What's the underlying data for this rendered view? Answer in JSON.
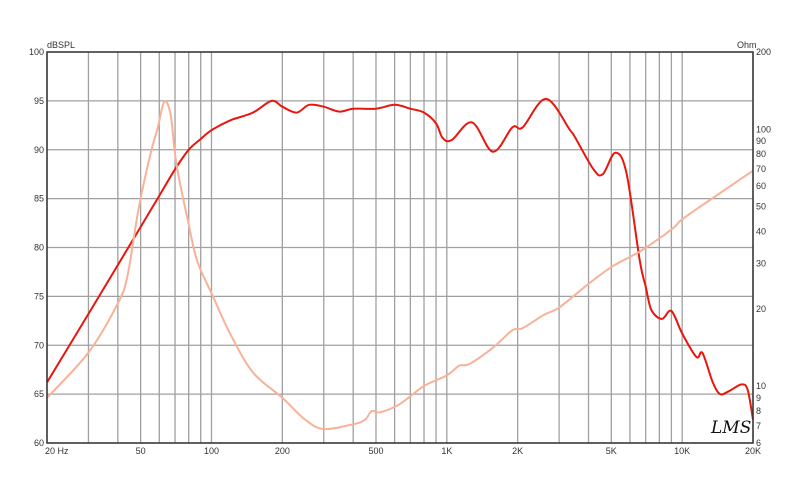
{
  "chart_data": {
    "type": "line",
    "title": "",
    "xlabel": "",
    "ylabel_left": "dBSPL",
    "ylabel_right": "Ohm",
    "x_scale": "log",
    "xlim": [
      20,
      20000
    ],
    "ylim_left": [
      60,
      100
    ],
    "ylim_right": [
      6,
      200
    ],
    "y_right_scale": "log",
    "grid": true,
    "x_tick_labels": [
      {
        "value": 20,
        "label": "20  Hz"
      },
      {
        "value": 50,
        "label": "50"
      },
      {
        "value": 100,
        "label": "100"
      },
      {
        "value": 200,
        "label": "200"
      },
      {
        "value": 500,
        "label": "500"
      },
      {
        "value": 1000,
        "label": "1K"
      },
      {
        "value": 2000,
        "label": "2K"
      },
      {
        "value": 5000,
        "label": "5K"
      },
      {
        "value": 10000,
        "label": "10K"
      },
      {
        "value": 20000,
        "label": "20K"
      }
    ],
    "x_gridlines": [
      20,
      30,
      40,
      50,
      60,
      70,
      80,
      90,
      100,
      200,
      300,
      400,
      500,
      600,
      700,
      800,
      900,
      1000,
      2000,
      3000,
      4000,
      5000,
      6000,
      7000,
      8000,
      9000,
      10000,
      20000
    ],
    "y_left_ticks": [
      60,
      65,
      70,
      75,
      80,
      85,
      90,
      95,
      100
    ],
    "y_right_ticks": [
      200,
      100,
      90,
      80,
      70,
      60,
      50,
      40,
      30,
      20,
      10,
      9,
      8,
      7,
      6
    ],
    "series": [
      {
        "axis": "left",
        "color": "#e8160c",
        "points": [
          [
            20,
            66.2
          ],
          [
            30,
            73.2
          ],
          [
            40,
            78.2
          ],
          [
            50,
            82.1
          ],
          [
            59,
            85
          ],
          [
            70,
            88
          ],
          [
            80,
            90
          ],
          [
            90,
            91.1
          ],
          [
            100,
            92
          ],
          [
            120,
            93
          ],
          [
            150,
            93.8
          ],
          [
            180,
            95
          ],
          [
            200,
            94.4
          ],
          [
            230,
            93.8
          ],
          [
            260,
            94.6
          ],
          [
            300,
            94.4
          ],
          [
            350,
            93.9
          ],
          [
            400,
            94.2
          ],
          [
            500,
            94.2
          ],
          [
            600,
            94.6
          ],
          [
            700,
            94.2
          ],
          [
            800,
            93.8
          ],
          [
            900,
            92.7
          ],
          [
            960,
            91.2
          ],
          [
            1050,
            91.0
          ],
          [
            1280,
            92.8
          ],
          [
            1570,
            89.8
          ],
          [
            1900,
            92.3
          ],
          [
            2100,
            92.3
          ],
          [
            2640,
            95.2
          ],
          [
            3340,
            92
          ],
          [
            3500,
            91.3
          ],
          [
            4200,
            88
          ],
          [
            4600,
            87.5
          ],
          [
            5200,
            89.7
          ],
          [
            5800,
            87.6
          ],
          [
            6600,
            78.7
          ],
          [
            7000,
            76
          ],
          [
            7400,
            73.6
          ],
          [
            8200,
            72.7
          ],
          [
            9000,
            73.5
          ],
          [
            10000,
            71.2
          ],
          [
            11500,
            68.8
          ],
          [
            12200,
            69.2
          ],
          [
            13500,
            66.2
          ],
          [
            14500,
            65
          ],
          [
            15800,
            65.3
          ],
          [
            17900,
            66
          ],
          [
            19000,
            65.4
          ],
          [
            20000,
            62.4
          ]
        ]
      },
      {
        "axis": "right",
        "color": "#f7b297",
        "points": [
          [
            20,
            9
          ],
          [
            30,
            13.5
          ],
          [
            40,
            21
          ],
          [
            44,
            27
          ],
          [
            49,
            49
          ],
          [
            55,
            80
          ],
          [
            59,
            101
          ],
          [
            63,
            128
          ],
          [
            67,
            114
          ],
          [
            71,
            73
          ],
          [
            80,
            42.6
          ],
          [
            87,
            30.6
          ],
          [
            100,
            23
          ],
          [
            120,
            16
          ],
          [
            150,
            11.3
          ],
          [
            200,
            9
          ],
          [
            250,
            7.4
          ],
          [
            300,
            6.8
          ],
          [
            400,
            7.1
          ],
          [
            450,
            7.4
          ],
          [
            480,
            8
          ],
          [
            520,
            7.9
          ],
          [
            630,
            8.5
          ],
          [
            800,
            10
          ],
          [
            1000,
            11
          ],
          [
            1130,
            12
          ],
          [
            1250,
            12.2
          ],
          [
            1570,
            14.1
          ],
          [
            1900,
            16.5
          ],
          [
            2100,
            16.8
          ],
          [
            2600,
            19
          ],
          [
            3000,
            20.2
          ],
          [
            4000,
            25
          ],
          [
            5100,
            29.4
          ],
          [
            6600,
            33.4
          ],
          [
            9100,
            41
          ],
          [
            10000,
            44.6
          ],
          [
            13500,
            54
          ],
          [
            20000,
            69
          ]
        ]
      }
    ],
    "grid_color": "#a0a0a0",
    "logo": "LMS"
  }
}
